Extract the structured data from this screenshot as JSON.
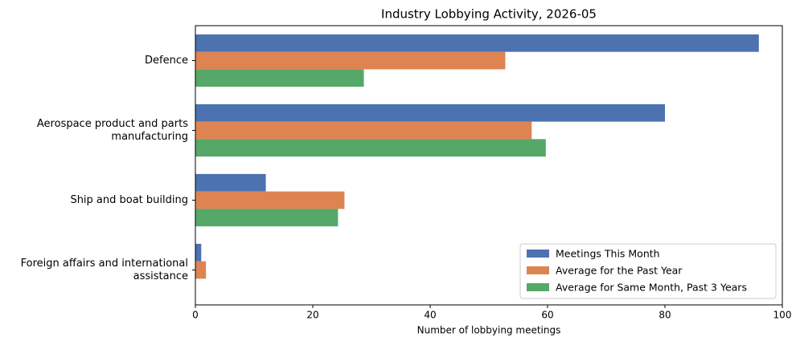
{
  "chart_data": {
    "type": "barh",
    "title": "Industry Lobbying Activity, 2026-05",
    "xlabel": "Number of lobbying meetings",
    "categories": [
      "Defence",
      "Aerospace product and parts\nmanufacturing",
      "Ship and boat building",
      "Foreign affairs and international\nassistance"
    ],
    "series": [
      {
        "name": "Meetings This Month",
        "color": "#4c72b0",
        "values": [
          96,
          80,
          12,
          1
        ]
      },
      {
        "name": "Average for the Past Year",
        "color": "#dd8452",
        "values": [
          52.8,
          57.3,
          25.4,
          1.8
        ]
      },
      {
        "name": "Average for Same Month, Past 3 Years",
        "color": "#55a868",
        "values": [
          28.7,
          59.7,
          24.3,
          0
        ]
      }
    ],
    "xlim": [
      0,
      100
    ],
    "xticks": [
      0,
      20,
      40,
      60,
      80,
      100
    ],
    "grid": false,
    "legend": "lower right"
  }
}
